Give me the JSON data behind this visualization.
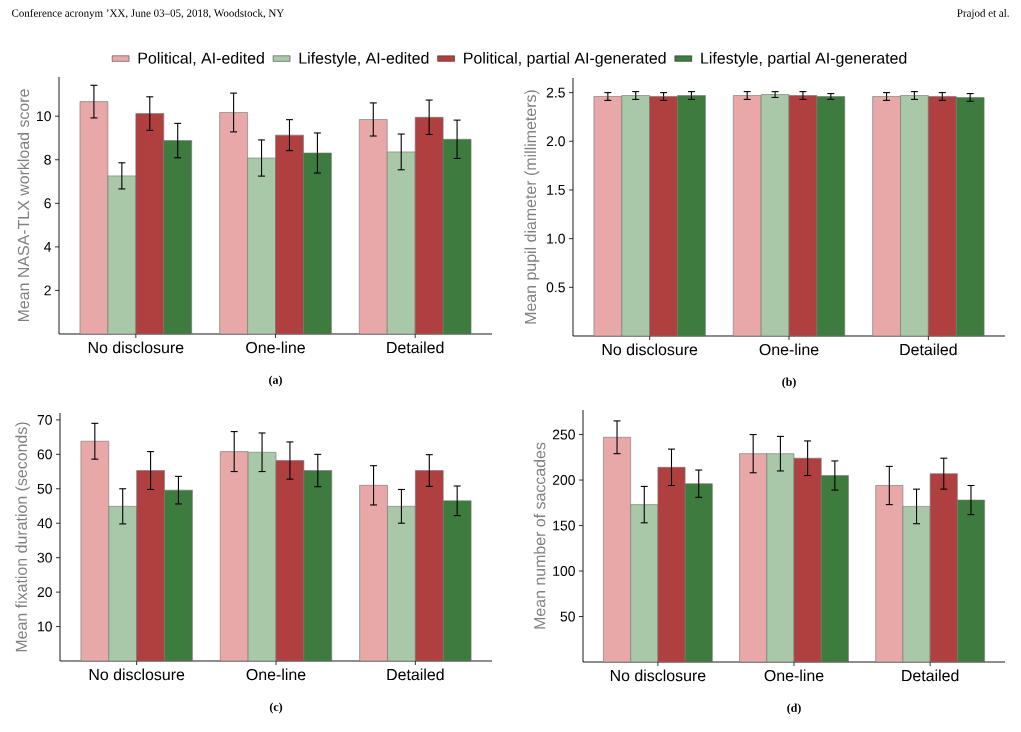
{
  "chart_data": [
    {
      "type": "bar",
      "title": "(a)",
      "ylabel": "Mean NASA-TLX workload score",
      "legend": "top",
      "annotations": [
        "Conference acronym ’XX, June 03–05, 2018, Woodstock, NY",
        "Prajod et al."
      ],
      "categories": [
        "No disclosure",
        "One-line",
        "Detailed"
      ],
      "ylim": [
        0,
        11.8
      ],
      "yticks": [
        2,
        4,
        6,
        8,
        10
      ],
      "series": [
        {
          "name": "Political, AI-edited",
          "color": "#e8a8a8",
          "values": [
            10.67,
            10.17,
            9.85
          ],
          "errors": [
            0.75,
            0.89,
            0.76
          ]
        },
        {
          "name": "Lifestyle, AI-edited",
          "color": "#a8c8a8",
          "values": [
            7.26,
            8.08,
            8.36
          ],
          "errors": [
            0.6,
            0.83,
            0.82
          ]
        },
        {
          "name": "Political, partial AI-generated",
          "color": "#b04040",
          "values": [
            10.12,
            9.13,
            9.95
          ],
          "errors": [
            0.77,
            0.71,
            0.79
          ]
        },
        {
          "name": "Lifestyle, partial AI-generated",
          "color": "#3e7b3e",
          "values": [
            8.88,
            8.31,
            8.94
          ],
          "errors": [
            0.79,
            0.92,
            0.88
          ]
        }
      ]
    },
    {
      "type": "bar",
      "title": "(b)",
      "ylabel": "Mean pupil diameter (millimeters)",
      "categories": [
        "No disclosure",
        "One-line",
        "Detailed"
      ],
      "ylim": [
        0,
        2.65
      ],
      "yticks": [
        {
          "value": 0.5,
          "label": "0.5"
        },
        {
          "value": 1,
          "label": "1.0"
        },
        {
          "value": 1.5,
          "label": "1.5"
        },
        {
          "value": 2,
          "label": "2.0"
        },
        {
          "value": 2.5,
          "label": "2.5"
        }
      ],
      "series": [
        {
          "color": "#e8a8a8",
          "values": [
            2.46,
            2.47,
            2.46
          ],
          "errors": [
            0.04,
            0.04,
            0.04
          ]
        },
        {
          "color": "#a8c8a8",
          "values": [
            2.47,
            2.48,
            2.47
          ],
          "errors": [
            0.04,
            0.03,
            0.04
          ]
        },
        {
          "color": "#b04040",
          "values": [
            2.46,
            2.47,
            2.46
          ],
          "errors": [
            0.04,
            0.04,
            0.04
          ]
        },
        {
          "color": "#3e7b3e",
          "values": [
            2.47,
            2.46,
            2.45
          ],
          "errors": [
            0.04,
            0.03,
            0.04
          ]
        }
      ]
    },
    {
      "type": "bar",
      "title": "(c)",
      "ylabel": "Mean fixation duration (seconds)",
      "categories": [
        "No disclosure",
        "One-line",
        "Detailed"
      ],
      "ylim": [
        0,
        72
      ],
      "yticks": [
        10,
        20,
        30,
        40,
        50,
        60,
        70
      ],
      "series": [
        {
          "color": "#e8a8a8",
          "values": [
            63.8,
            60.8,
            51
          ],
          "errors": [
            5.2,
            5.8,
            5.7
          ]
        },
        {
          "color": "#a8c8a8",
          "values": [
            44.9,
            60.6,
            44.9
          ],
          "errors": [
            5.1,
            5.6,
            4.9
          ]
        },
        {
          "color": "#b04040",
          "values": [
            55.3,
            58.2,
            55.3
          ],
          "errors": [
            5.5,
            5.4,
            4.6
          ]
        },
        {
          "color": "#3e7b3e",
          "values": [
            49.6,
            55.3,
            46.5
          ],
          "errors": [
            4,
            4.7,
            4.3
          ]
        }
      ]
    },
    {
      "type": "bar",
      "title": "(d)",
      "ylabel": "Mean number of saccades",
      "categories": [
        "No disclosure",
        "One-line",
        "Detailed"
      ],
      "ylim": [
        0,
        277
      ],
      "yticks": [
        50,
        100,
        150,
        200,
        250
      ],
      "series": [
        {
          "color": "#e8a8a8",
          "values": [
            247,
            229,
            194
          ],
          "errors": [
            18,
            21,
            21
          ]
        },
        {
          "color": "#a8c8a8",
          "values": [
            173,
            229,
            171
          ],
          "errors": [
            20,
            19,
            19
          ]
        },
        {
          "color": "#b04040",
          "values": [
            214,
            224,
            207
          ],
          "errors": [
            20,
            19,
            17
          ]
        },
        {
          "color": "#3e7b3e",
          "values": [
            196,
            205,
            178
          ],
          "errors": [
            15,
            16,
            16
          ]
        }
      ]
    }
  ]
}
